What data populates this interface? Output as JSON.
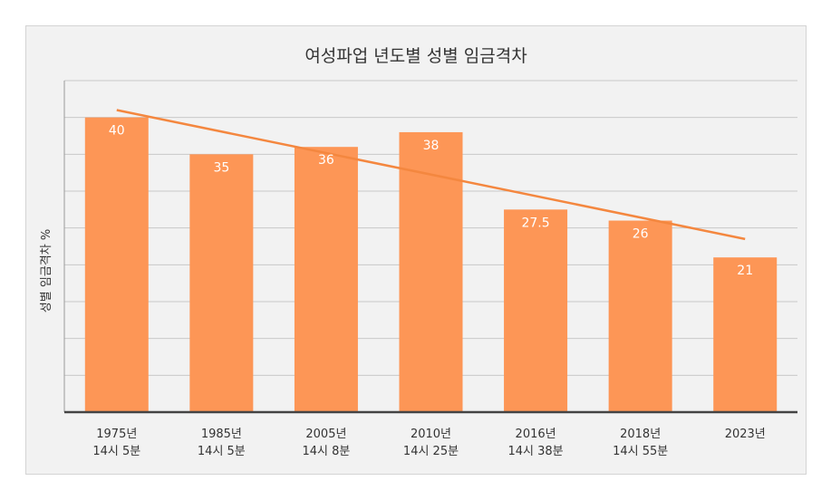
{
  "chart_data": {
    "type": "bar",
    "title": "여성파업 년도별 성별 임금격차",
    "ylabel": "성별 임금격차 %",
    "xlabel": "",
    "categories": [
      [
        "1975년",
        "14시 5분"
      ],
      [
        "1985년",
        "14시 5분"
      ],
      [
        "2005년",
        "14시 8분"
      ],
      [
        "2010년",
        "14시 25분"
      ],
      [
        "2016년",
        "14시 38분"
      ],
      [
        "2018년",
        "14시 55분"
      ],
      [
        "2023년",
        ""
      ]
    ],
    "values": [
      40,
      35,
      36,
      38,
      27.5,
      26,
      21
    ],
    "value_labels": [
      "40",
      "35",
      "36",
      "38",
      "27.5",
      "26",
      "21"
    ],
    "trendline": {
      "type": "linear",
      "start": 41,
      "end": 23.5
    },
    "ylim": [
      0,
      45
    ],
    "grid": true,
    "legend": "none",
    "colors": {
      "bar": "#fd9656",
      "trend": "#f4873f",
      "grid": "#c8c8c8",
      "axis": "#444444",
      "background": "#f2f2f2"
    }
  }
}
